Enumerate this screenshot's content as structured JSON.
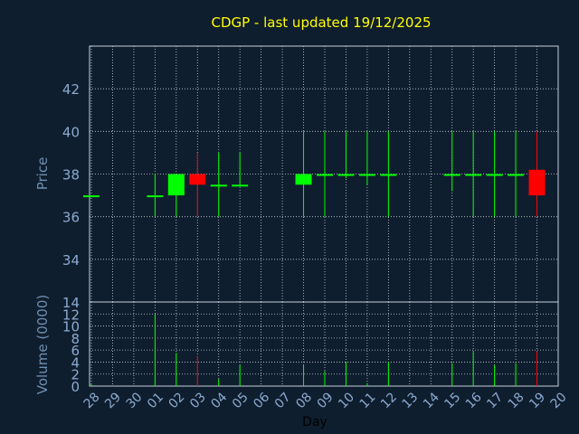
{
  "chart_data": [
    {
      "type": "candlestick",
      "title": "CDGP - last updated 19/12/2025",
      "xlabel": "",
      "ylabel": "Price",
      "ylim": [
        32,
        44
      ],
      "y_ticks": [
        34,
        36,
        38,
        40,
        42
      ],
      "x_ticks": [
        "28",
        "29",
        "30",
        "01",
        "02",
        "03",
        "04",
        "05",
        "06",
        "07",
        "08",
        "09",
        "10",
        "11",
        "12",
        "13",
        "14",
        "15",
        "16",
        "17",
        "18",
        "19",
        "20"
      ],
      "grid": true,
      "candles": [
        {
          "x": "28",
          "open": 37.0,
          "high": 37.0,
          "low": 37.0,
          "close": 37.0
        },
        {
          "x": "01",
          "open": 37.0,
          "high": 38.0,
          "low": 36.0,
          "close": 37.0
        },
        {
          "x": "02",
          "open": 37.0,
          "high": 38.0,
          "low": 36.0,
          "close": 38.0
        },
        {
          "x": "03",
          "open": 38.0,
          "high": 39.0,
          "low": 36.0,
          "close": 37.5
        },
        {
          "x": "04",
          "open": 37.5,
          "high": 39.0,
          "low": 36.0,
          "close": 37.5
        },
        {
          "x": "05",
          "open": 37.5,
          "high": 39.0,
          "low": 37.5,
          "close": 37.5
        },
        {
          "x": "08",
          "open": 37.5,
          "high": 40.0,
          "low": 36.0,
          "close": 38.0
        },
        {
          "x": "09",
          "open": 38.0,
          "high": 40.0,
          "low": 36.0,
          "close": 38.0
        },
        {
          "x": "10",
          "open": 38.0,
          "high": 40.0,
          "low": 37.8,
          "close": 38.0
        },
        {
          "x": "11",
          "open": 38.0,
          "high": 40.0,
          "low": 37.5,
          "close": 38.0
        },
        {
          "x": "12",
          "open": 38.0,
          "high": 40.0,
          "low": 36.0,
          "close": 38.0
        },
        {
          "x": "15",
          "open": 38.0,
          "high": 40.0,
          "low": 37.2,
          "close": 38.0
        },
        {
          "x": "16",
          "open": 38.0,
          "high": 40.0,
          "low": 36.0,
          "close": 38.0
        },
        {
          "x": "17",
          "open": 38.0,
          "high": 40.0,
          "low": 36.0,
          "close": 38.0
        },
        {
          "x": "18",
          "open": 38.0,
          "high": 40.0,
          "low": 36.0,
          "close": 38.0
        },
        {
          "x": "19",
          "open": 38.2,
          "high": 40.0,
          "low": 36.0,
          "close": 37.0
        }
      ],
      "colors": {
        "up": "#00ff00",
        "down": "#ff0000",
        "title": "#ffff00",
        "axis_label": "#6f8fb0",
        "tick": "#8aaad0",
        "grid": "#c8d0dc",
        "background": "#0f1e2e"
      }
    },
    {
      "type": "bar",
      "xlabel": "Day",
      "ylabel": "Volume (0000)",
      "ylim": [
        0,
        14
      ],
      "y_ticks": [
        0,
        2,
        4,
        6,
        8,
        10,
        12,
        14
      ],
      "categories": [
        "28",
        "29",
        "30",
        "01",
        "02",
        "03",
        "04",
        "05",
        "06",
        "07",
        "08",
        "09",
        "10",
        "11",
        "12",
        "13",
        "14",
        "15",
        "16",
        "17",
        "18",
        "19",
        "20"
      ],
      "values": [
        0.3,
        0,
        0,
        12,
        5.5,
        5,
        1.2,
        3.5,
        0,
        0,
        3.5,
        2.5,
        4,
        0.5,
        4,
        0,
        0,
        3.8,
        5.8,
        3.5,
        3.8,
        5.8,
        0
      ],
      "bar_colors": [
        "#00ff00",
        "#00ff00",
        "#00ff00",
        "#00ff00",
        "#00ff00",
        "#ff0000",
        "#00ff00",
        "#00ff00",
        "#00ff00",
        "#00ff00",
        "#00ff00",
        "#00ff00",
        "#00ff00",
        "#00ff00",
        "#00ff00",
        "#00ff00",
        "#00ff00",
        "#00ff00",
        "#00ff00",
        "#00ff00",
        "#00ff00",
        "#ff0000",
        "#00ff00"
      ],
      "grid": true
    }
  ]
}
